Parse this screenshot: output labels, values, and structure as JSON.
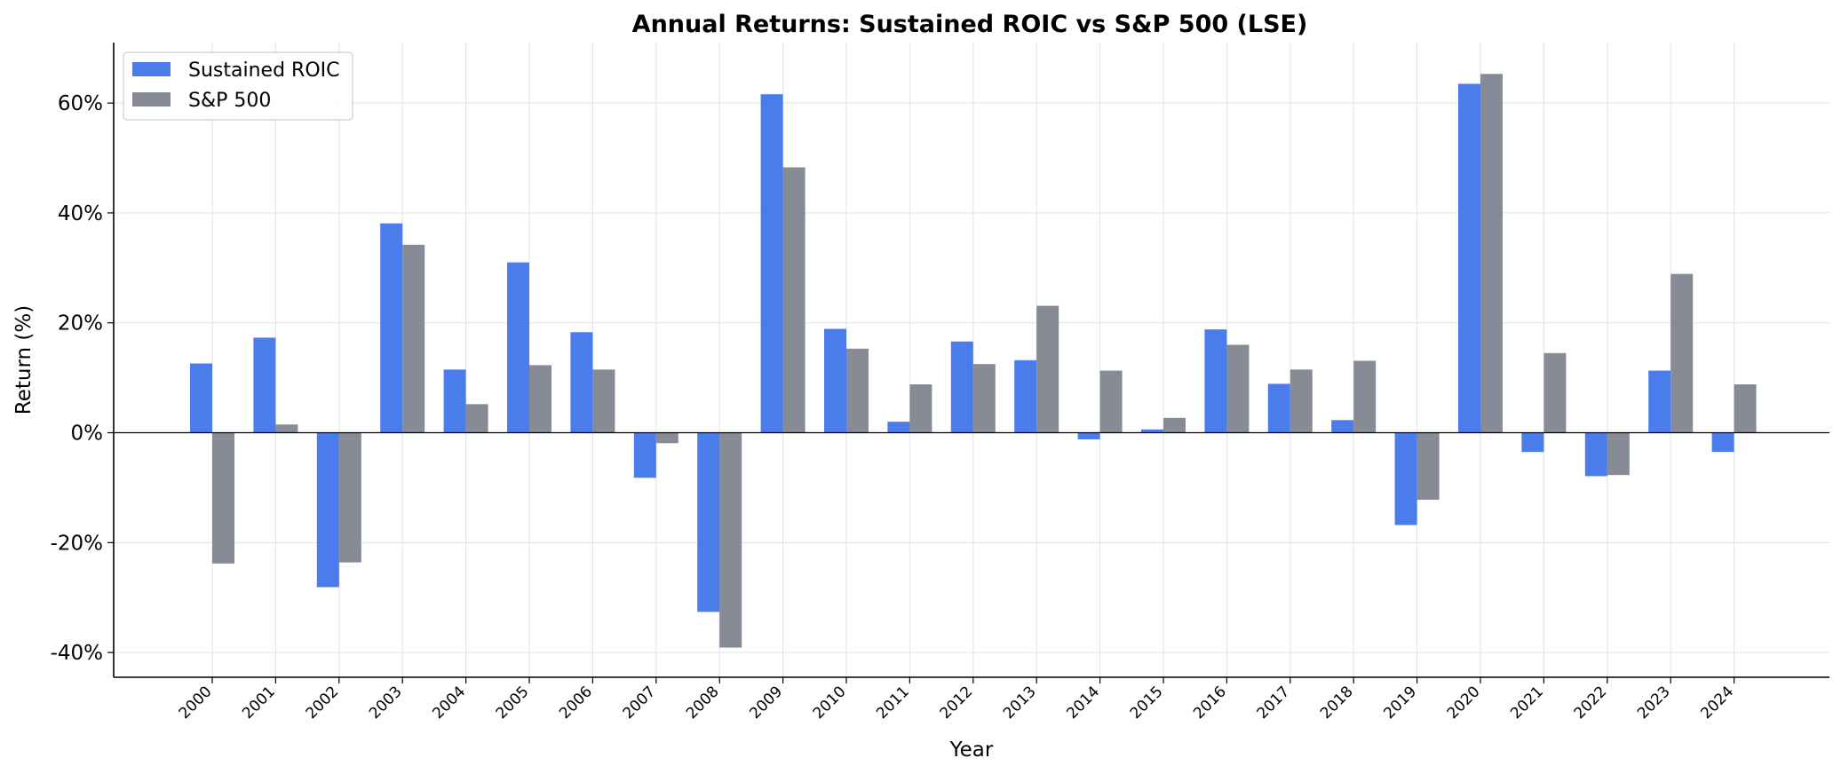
{
  "chart_data": {
    "type": "bar",
    "title": "Annual Returns: Sustained ROIC vs S&P 500 (LSE)",
    "xlabel": "Year",
    "ylabel": "Return (%)",
    "categories": [
      "2000",
      "2001",
      "2002",
      "2003",
      "2004",
      "2005",
      "2006",
      "2007",
      "2008",
      "2009",
      "2010",
      "2011",
      "2012",
      "2013",
      "2014",
      "2015",
      "2016",
      "2017",
      "2018",
      "2019",
      "2020",
      "2021",
      "2022",
      "2023",
      "2024"
    ],
    "series": [
      {
        "name": "Sustained ROIC",
        "color": "#4a7cec",
        "values": [
          12.6,
          17.3,
          -28.1,
          38.1,
          11.5,
          31.0,
          18.3,
          -8.2,
          -32.6,
          61.6,
          18.9,
          2.0,
          16.6,
          13.2,
          -1.2,
          0.6,
          18.8,
          8.9,
          2.3,
          -16.8,
          63.5,
          -3.5,
          -7.9,
          11.3,
          -3.5
        ]
      },
      {
        "name": "S&P 500",
        "color": "#868b95",
        "values": [
          -23.8,
          1.5,
          -23.6,
          34.2,
          5.2,
          12.3,
          11.5,
          -1.9,
          -39.1,
          48.3,
          15.3,
          8.8,
          12.5,
          23.1,
          11.3,
          2.7,
          16.0,
          11.5,
          13.1,
          -12.2,
          65.3,
          14.5,
          -7.7,
          28.9,
          8.8
        ]
      }
    ],
    "ylim": [
      -44.5,
      71
    ],
    "yticks": [
      {
        "value": -40,
        "label": "-40%"
      },
      {
        "value": -20,
        "label": "-20%"
      },
      {
        "value": 0,
        "label": "0%"
      },
      {
        "value": 20,
        "label": "20%"
      },
      {
        "value": 40,
        "label": "40%"
      },
      {
        "value": 60,
        "label": "60%"
      }
    ],
    "grid": true,
    "legend": "top-left"
  }
}
